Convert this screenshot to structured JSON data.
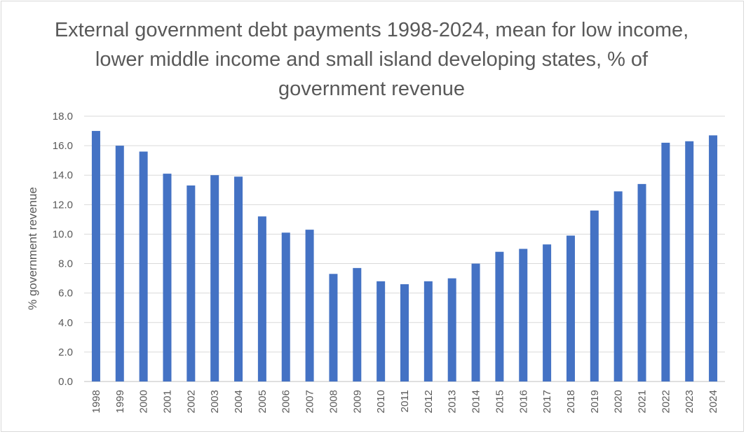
{
  "chart_data": {
    "type": "bar",
    "title": "External government debt payments 1998-2024, mean for low income, lower middle income and small island developing states, % of government revenue",
    "xlabel": "",
    "ylabel": "% government revenue",
    "ylim": [
      0,
      18
    ],
    "yticks": [
      "0.0",
      "2.0",
      "4.0",
      "6.0",
      "8.0",
      "10.0",
      "12.0",
      "14.0",
      "16.0",
      "18.0"
    ],
    "grid": true,
    "legend": "none",
    "bar_color": "#4472c4",
    "categories": [
      "1998",
      "1999",
      "2000",
      "2001",
      "2002",
      "2003",
      "2004",
      "2005",
      "2006",
      "2007",
      "2008",
      "2009",
      "2010",
      "2011",
      "2012",
      "2013",
      "2014",
      "2015",
      "2016",
      "2017",
      "2018",
      "2019",
      "2020",
      "2021",
      "2022",
      "2023",
      "2024"
    ],
    "values": [
      17.0,
      16.0,
      15.6,
      14.1,
      13.3,
      14.0,
      13.9,
      11.2,
      10.1,
      10.3,
      7.3,
      7.7,
      6.8,
      6.6,
      6.8,
      7.0,
      8.0,
      8.8,
      9.0,
      9.3,
      9.9,
      11.6,
      12.9,
      13.4,
      16.2,
      16.3,
      16.7
    ]
  }
}
